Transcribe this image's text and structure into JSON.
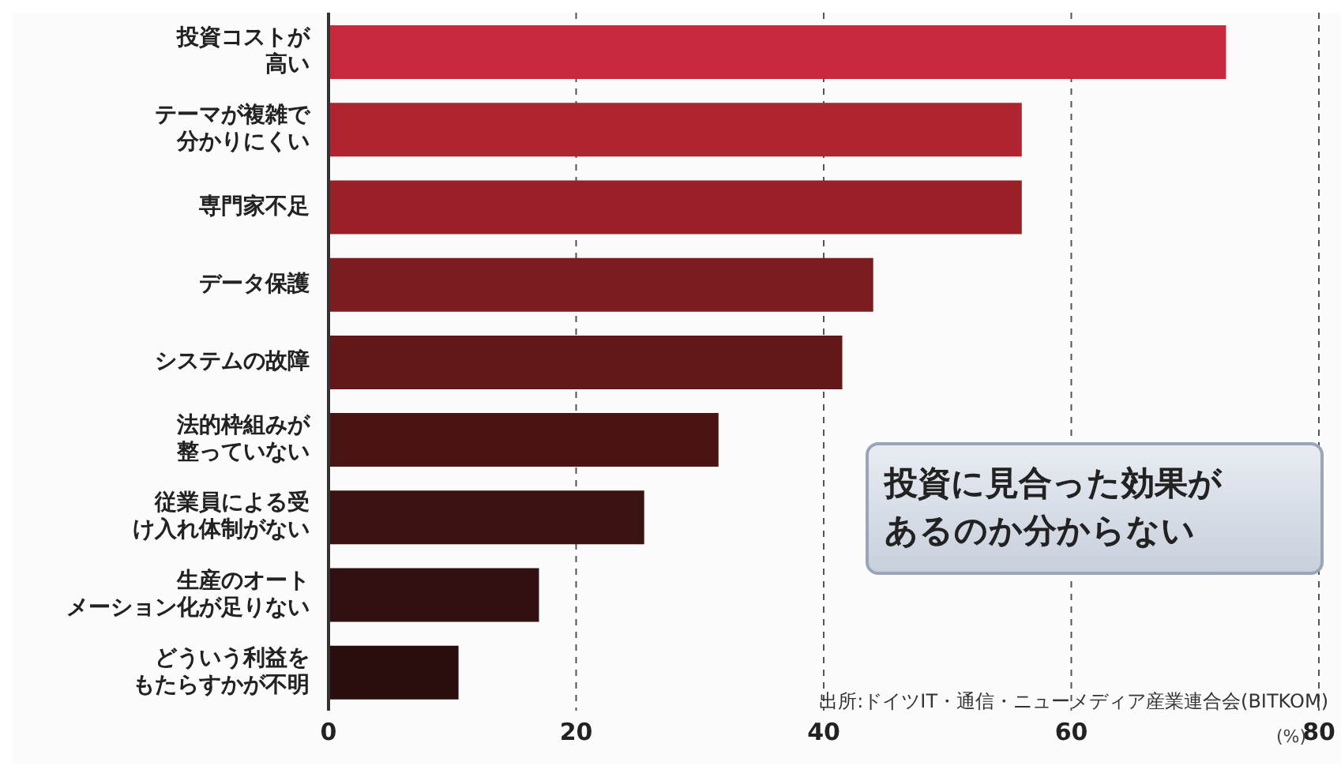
{
  "chart_data": {
    "type": "bar",
    "orientation": "horizontal",
    "title": "投資に見合った効果があるのか分からない",
    "categories": [
      "投資コストが高い",
      "テーマが複雑で分かりにくい",
      "専門家不足",
      "データ保護",
      "システムの故障",
      "法的枠組みが整っていない",
      "従業員による受け入れ体制がない",
      "生産のオートメーション化が足りない",
      "どういう利益をもたらすかが不明"
    ],
    "values": [
      72.5,
      56,
      56,
      44,
      41.5,
      31.5,
      25.5,
      17,
      10.5
    ],
    "colors": [
      "#c8283c",
      "#b02430",
      "#9a2028",
      "#7a1c20",
      "#621818",
      "#4a1414",
      "#3a1212",
      "#301010",
      "#2a0e0e"
    ],
    "xlabel": "(%)",
    "xlim": [
      0,
      80
    ],
    "xticks": [
      0,
      20,
      40,
      60,
      80
    ],
    "grid": "x",
    "annotations": [
      "出所:ドイツIT・通信・ニューメディア産業連合会(BITKOM)"
    ]
  }
}
